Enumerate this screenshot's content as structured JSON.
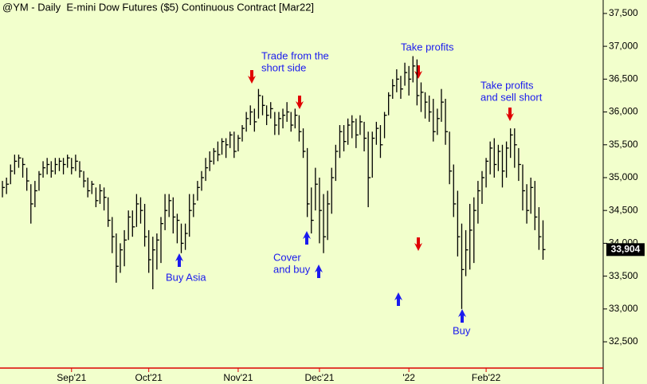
{
  "chart_data": {
    "type": "ohlc",
    "title": "@YM - Daily  E-mini Dow Futures ($5) Continuous Contract [Mar22]",
    "color": "#000000",
    "background": "#f2ffcc",
    "xlim": [
      -0.6,
      147.8
    ],
    "xticks": [
      {
        "value": 17,
        "label": "Sep'21"
      },
      {
        "value": 36,
        "label": "Oct'21"
      },
      {
        "value": 58,
        "label": "Nov'21"
      },
      {
        "value": 78,
        "label": "Dec'21"
      },
      {
        "value": 100,
        "label": "'22"
      },
      {
        "value": 119,
        "label": "Feb'22"
      }
    ],
    "ylim": [
      32100,
      37705
    ],
    "yticks": [
      {
        "value": 32500,
        "label": "32,500"
      },
      {
        "value": 33000,
        "label": "33,000"
      },
      {
        "value": 33500,
        "label": "33,500"
      },
      {
        "value": 34000,
        "label": "34,000"
      },
      {
        "value": 34500,
        "label": "34,500"
      },
      {
        "value": 35000,
        "label": "35,000"
      },
      {
        "value": 35500,
        "label": "35,500"
      },
      {
        "value": 36000,
        "label": "36,000"
      },
      {
        "value": 36500,
        "label": "36,500"
      },
      {
        "value": 37000,
        "label": "37,000"
      },
      {
        "value": 37500,
        "label": "37,500"
      }
    ],
    "high": [
      34950,
      35000,
      35200,
      35350,
      35350,
      35300,
      35150,
      34900,
      34950,
      35100,
      35250,
      35300,
      35250,
      35300,
      35300,
      35300,
      35350,
      35300,
      35350,
      35250,
      35100,
      35000,
      34950,
      34850,
      34900,
      34850,
      34700,
      34400,
      34150,
      34000,
      34200,
      34500,
      34500,
      34750,
      34700,
      34600,
      34200,
      34100,
      34150,
      34400,
      34750,
      34750,
      34700,
      34450,
      34300,
      34300,
      34750,
      34750,
      34950,
      35100,
      35300,
      35400,
      35450,
      35550,
      35600,
      35600,
      35700,
      35700,
      35650,
      35800,
      36000,
      36100,
      36050,
      36350,
      36250,
      36100,
      36150,
      36000,
      36000,
      36050,
      36150,
      36000,
      36050,
      35950,
      35750,
      35450,
      34850,
      35150,
      35000,
      34750,
      34800,
      35150,
      35500,
      35800,
      35800,
      35900,
      35950,
      35900,
      35950,
      35850,
      35700,
      35700,
      35850,
      35800,
      36000,
      36300,
      36500,
      36650,
      36550,
      36750,
      36700,
      36850,
      36800,
      36450,
      36300,
      36250,
      36200,
      36050,
      36350,
      36200,
      35700,
      35200,
      34800,
      34300,
      34200,
      34600,
      34700,
      34950,
      35100,
      35300,
      35550,
      35600,
      35500,
      35500,
      35550,
      35750,
      35750,
      35450,
      35200,
      34900,
      35000,
      34950,
      34550,
      34350
    ],
    "low": [
      34700,
      34750,
      34900,
      35050,
      35150,
      35000,
      34800,
      34300,
      34550,
      34800,
      35000,
      35050,
      35000,
      35050,
      35100,
      35050,
      35150,
      35050,
      35100,
      35000,
      34850,
      34700,
      34750,
      34550,
      34600,
      34500,
      34250,
      33850,
      33400,
      33550,
      33650,
      34050,
      34100,
      34250,
      34300,
      33950,
      33550,
      33300,
      33600,
      33700,
      34200,
      34400,
      34150,
      34000,
      33850,
      33900,
      34100,
      34400,
      34650,
      34800,
      34950,
      35100,
      35200,
      35250,
      35350,
      35300,
      35450,
      35300,
      35400,
      35550,
      35700,
      35800,
      35700,
      35900,
      35950,
      35800,
      35900,
      35650,
      35650,
      35750,
      35850,
      35700,
      35750,
      35550,
      35300,
      34400,
      34150,
      34500,
      34000,
      33850,
      34050,
      34450,
      34950,
      35300,
      35400,
      35500,
      35600,
      35450,
      35650,
      35400,
      34550,
      35000,
      35500,
      35300,
      35600,
      35950,
      36200,
      36300,
      36200,
      36400,
      36250,
      36450,
      36100,
      36000,
      35900,
      35850,
      35550,
      35650,
      35850,
      35500,
      34900,
      34400,
      33800,
      33000,
      33500,
      33600,
      33700,
      34300,
      34600,
      34850,
      35050,
      35000,
      35100,
      34850,
      35000,
      35300,
      35150,
      34950,
      34500,
      34300,
      34450,
      34200,
      33900,
      33750
    ],
    "close": [
      34850,
      34900,
      35100,
      35250,
      35300,
      35200,
      34950,
      34600,
      34800,
      35050,
      35150,
      35200,
      35100,
      35200,
      35250,
      35200,
      35300,
      35150,
      35250,
      35100,
      34950,
      34800,
      34900,
      34650,
      34800,
      34700,
      34350,
      34100,
      33650,
      33900,
      34050,
      34400,
      34250,
      34600,
      34500,
      34100,
      33750,
      33900,
      34050,
      34300,
      34500,
      34650,
      34400,
      34350,
      34000,
      34150,
      34500,
      34600,
      34850,
      35000,
      35150,
      35250,
      35400,
      35350,
      35550,
      35500,
      35650,
      35400,
      35600,
      35750,
      35900,
      36000,
      35850,
      36250,
      36100,
      35950,
      36050,
      35800,
      35900,
      35950,
      36000,
      35800,
      35950,
      35700,
      35400,
      34600,
      34350,
      34900,
      34500,
      34100,
      34600,
      35000,
      35400,
      35700,
      35550,
      35800,
      35850,
      35650,
      35850,
      35600,
      35000,
      35600,
      35750,
      35500,
      35950,
      36250,
      36400,
      36500,
      36350,
      36600,
      36500,
      36700,
      36250,
      36300,
      36150,
      36000,
      35700,
      35900,
      36150,
      35700,
      35100,
      34600,
      34100,
      33600,
      33900,
      34200,
      34500,
      34800,
      35000,
      35250,
      35450,
      35200,
      35400,
      35100,
      35450,
      35650,
      35500,
      35200,
      34800,
      34500,
      34850,
      34400,
      34100,
      33904
    ],
    "last_label": "33,904",
    "annotations": [
      "Trade from the",
      "short side",
      "Take profits",
      "Take profits",
      "and sell short",
      "Buy Asia",
      "Cover",
      "and buy",
      "Buy"
    ]
  }
}
